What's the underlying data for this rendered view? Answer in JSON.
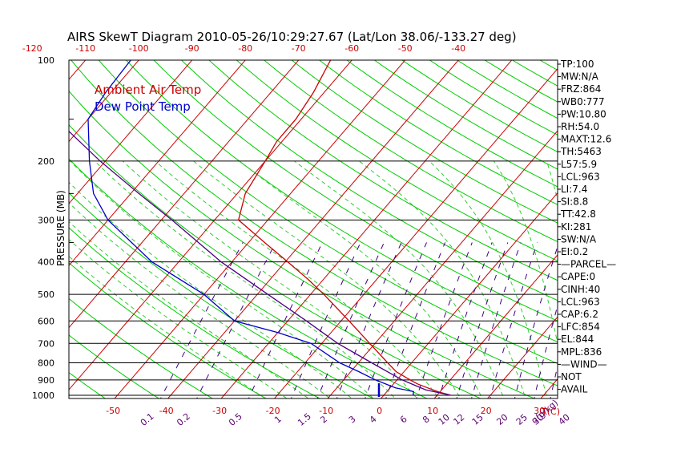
{
  "title": "AIRS SkewT Diagram 2010-05-26/10:29:27.67 (Lat/Lon 38.06/-133.27 deg)",
  "ylabel": "PRESSURE (MB)",
  "x_unit_label": "T(C)",
  "mix_unit_label": "q(g/kg)",
  "legend": {
    "air": "Ambient Air Temp",
    "dew": "Dew Point Temp"
  },
  "colors": {
    "air": "#cc0000",
    "dew": "#0000cc",
    "dry_adiabat": "#00cc00",
    "wet_adiabat": "#33cc33",
    "isotherm": "#cc0000",
    "mixing": "#3f007f",
    "parcel": "#4b0082"
  },
  "pressure_ticks": [
    "100",
    "200",
    "300",
    "400",
    "500",
    "600",
    "700",
    "800",
    "900",
    "1000"
  ],
  "top_temp_ticks": [
    "-120",
    "-110",
    "-100",
    "-90",
    "-80",
    "-70",
    "-60",
    "-50",
    "-40"
  ],
  "bottom_temp_ticks": [
    "-50",
    "-40",
    "-30",
    "-20",
    "-10",
    "0",
    "10",
    "20",
    "30"
  ],
  "mixing_ticks": [
    "0.1",
    "0.2",
    "0.5",
    "1",
    "1.5",
    "2",
    "3",
    "4",
    "6",
    "8",
    "10",
    "12",
    "15",
    "20",
    "25",
    "30",
    "40"
  ],
  "stats": [
    "TP:100",
    "MW:N/A",
    "FRZ:864",
    "WB0:777",
    "PW:10.80",
    "RH:54.0",
    "MAXT:12.6",
    "TH:5463",
    "L57:5.9",
    "LCL:963",
    "LI:7.4",
    "SI:8.8",
    "TT:42.8",
    "KI:281",
    "SW:N/A",
    "EI:0.2",
    "—PARCEL—",
    "CAPE:0",
    "CINH:40",
    "LCL:963",
    "CAP:6.2",
    "LFC:854",
    "EL:844",
    "MPL:836",
    "—WIND—",
    "NOT",
    "AVAIL"
  ],
  "chart_data": {
    "type": "line",
    "title": "AIRS SkewT Diagram 2010-05-26/10:29:27.67 (Lat/Lon 38.06/-133.27 deg)",
    "ylabel": "PRESSURE (MB)",
    "xlabel": "T(C)",
    "y_scale": "log-pressure",
    "ylim": [
      1000,
      100
    ],
    "series": [
      {
        "name": "Ambient Air Temp",
        "points": [
          {
            "p": 1000,
            "t": 12.6
          },
          {
            "p": 975,
            "t": 9.5
          },
          {
            "p": 950,
            "t": 7.0
          },
          {
            "p": 925,
            "t": 4.5
          },
          {
            "p": 900,
            "t": 2.5
          },
          {
            "p": 850,
            "t": -1.5
          },
          {
            "p": 800,
            "t": -4.5
          },
          {
            "p": 700,
            "t": -11.0
          },
          {
            "p": 600,
            "t": -18.5
          },
          {
            "p": 500,
            "t": -27.5
          },
          {
            "p": 450,
            "t": -33.0
          },
          {
            "p": 400,
            "t": -39.5
          },
          {
            "p": 350,
            "t": -47.0
          },
          {
            "p": 300,
            "t": -55.5
          },
          {
            "p": 250,
            "t": -58.5
          },
          {
            "p": 200,
            "t": -60.0
          },
          {
            "p": 175,
            "t": -61.0
          },
          {
            "p": 150,
            "t": -61.0
          },
          {
            "p": 125,
            "t": -62.0
          },
          {
            "p": 100,
            "t": -64.0
          }
        ]
      },
      {
        "name": "Dew Point Temp",
        "points": [
          {
            "p": 1000,
            "t": 5.5
          },
          {
            "p": 975,
            "t": 5.0
          },
          {
            "p": 950,
            "t": 1.0
          },
          {
            "p": 900,
            "t": -4.0
          },
          {
            "p": 850,
            "t": -8.5
          },
          {
            "p": 800,
            "t": -13.5
          },
          {
            "p": 700,
            "t": -22.0
          },
          {
            "p": 650,
            "t": -30.0
          },
          {
            "p": 600,
            "t": -40.0
          },
          {
            "p": 500,
            "t": -50.0
          },
          {
            "p": 400,
            "t": -65.0
          },
          {
            "p": 300,
            "t": -80.0
          },
          {
            "p": 250,
            "t": -87.0
          },
          {
            "p": 200,
            "t": -93.0
          },
          {
            "p": 150,
            "t": -100.0
          },
          {
            "p": 125,
            "t": -101.0
          },
          {
            "p": 100,
            "t": -101.5
          }
        ]
      },
      {
        "name": "Parcel",
        "points": [
          {
            "p": 1000,
            "t": 12.6
          },
          {
            "p": 963,
            "t": 7.0
          },
          {
            "p": 900,
            "t": 1.0
          },
          {
            "p": 800,
            "t": -7.5
          },
          {
            "p": 700,
            "t": -17.0
          },
          {
            "p": 600,
            "t": -26.5
          },
          {
            "p": 500,
            "t": -38.0
          },
          {
            "p": 400,
            "t": -52.0
          },
          {
            "p": 300,
            "t": -68.0
          },
          {
            "p": 250,
            "t": -78.5
          },
          {
            "p": 200,
            "t": -91.0
          },
          {
            "p": 150,
            "t": -106.0
          },
          {
            "p": 125,
            "t": -115.0
          },
          {
            "p": 100,
            "t": -125.5
          }
        ]
      }
    ]
  }
}
